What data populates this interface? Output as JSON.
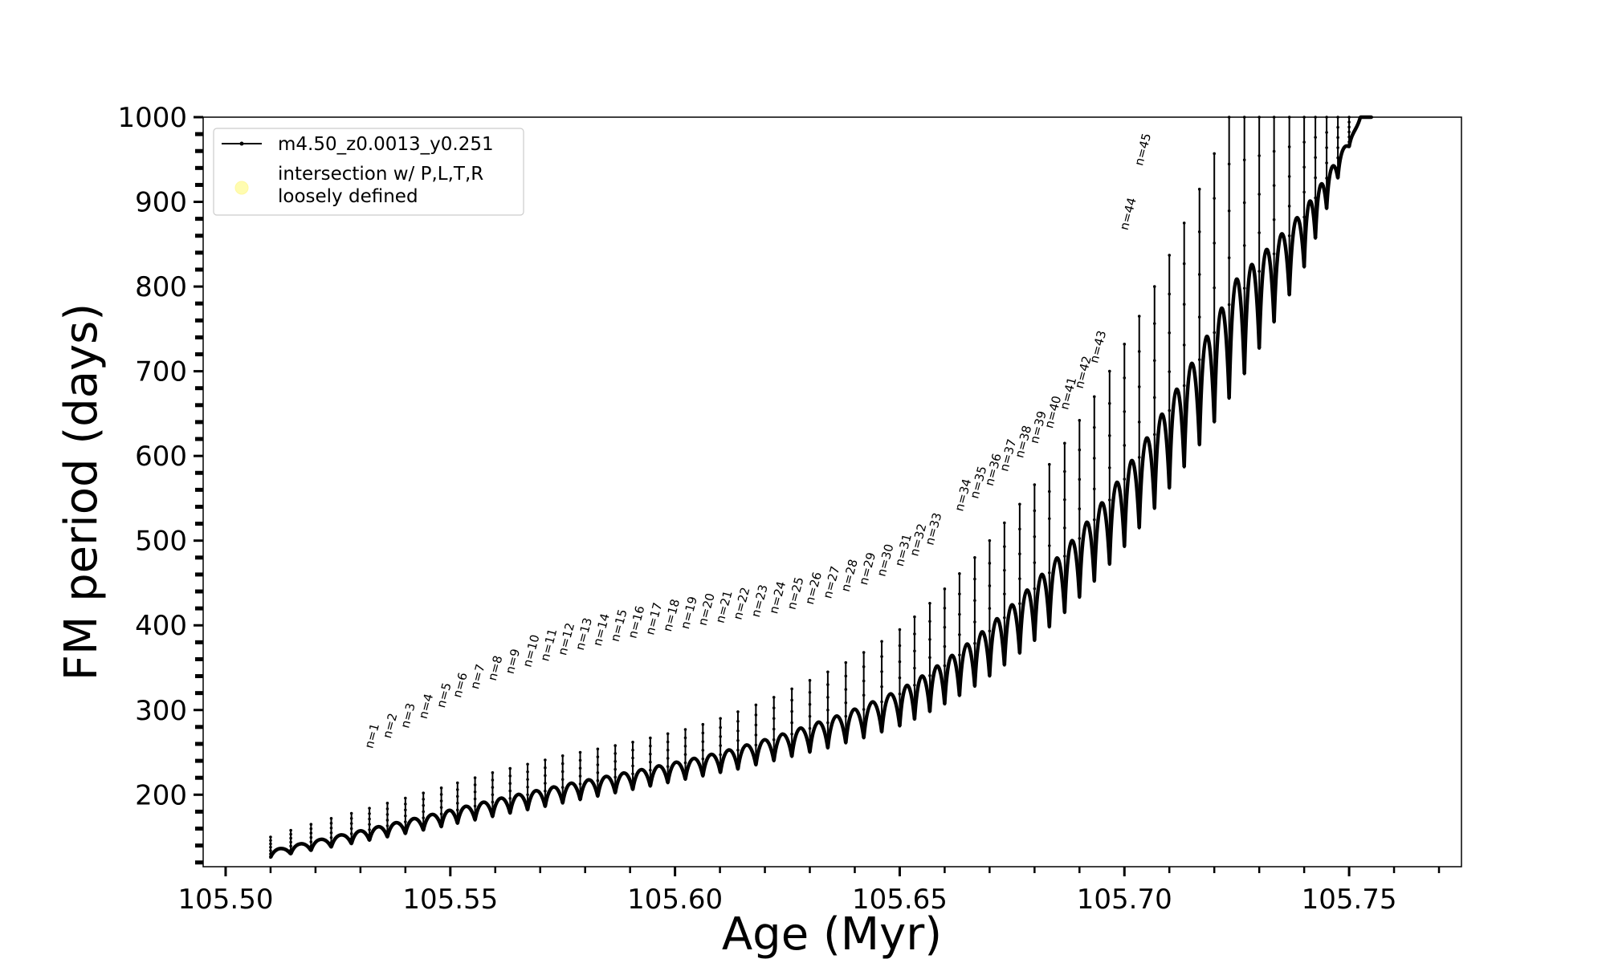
{
  "chart_data": {
    "type": "line",
    "title": "",
    "xlabel": "Age (Myr)",
    "ylabel": "FM period (days)",
    "xlim": [
      105.495,
      105.775
    ],
    "ylim": [
      115,
      1000
    ],
    "x_ticks": [
      105.5,
      105.55,
      105.6,
      105.65,
      105.7,
      105.75
    ],
    "x_tick_labels": [
      "105.50",
      "105.55",
      "105.60",
      "105.65",
      "105.70",
      "105.75"
    ],
    "y_ticks": [
      200,
      300,
      400,
      500,
      600,
      700,
      800,
      900,
      1000
    ],
    "y_tick_labels": [
      "200",
      "300",
      "400",
      "500",
      "600",
      "700",
      "800",
      "900",
      "1000"
    ],
    "grid": false,
    "legend": {
      "placement": "top-left",
      "entries": [
        {
          "label": "m4.50_z0.0013_y0.251",
          "marker": "line-dot",
          "color": "#000000"
        },
        {
          "label": "intersection w/ P,L,T,R",
          "label_line2": "loosely defined",
          "marker": "circle",
          "color": "#fffcb0"
        }
      ]
    },
    "series": [
      {
        "name": "m4.50_z0.0013_y0.251",
        "color": "#000000",
        "pulse_ages": [
          105.51,
          105.5145,
          105.519,
          105.5235,
          105.528,
          105.532,
          105.536,
          105.54,
          105.544,
          105.548,
          105.5516,
          105.5555,
          105.5594,
          105.5633,
          105.5672,
          105.5711,
          105.575,
          105.5789,
          105.5828,
          105.5867,
          105.5906,
          105.5945,
          105.5984,
          105.6023,
          105.6062,
          105.6101,
          105.614,
          105.618,
          105.622,
          105.626,
          105.63,
          105.634,
          105.638,
          105.642,
          105.646,
          105.65,
          105.6533,
          105.6567,
          105.66,
          105.6633,
          105.6667,
          105.67,
          105.6733,
          105.6767,
          105.68,
          105.6833,
          105.6867,
          105.69,
          105.6933,
          105.6967,
          105.7,
          105.7033,
          105.7067,
          105.71,
          105.7133,
          105.7167,
          105.72,
          105.7233,
          105.7267,
          105.73,
          105.7333,
          105.7367,
          105.74,
          105.7425,
          105.745,
          105.7475,
          105.75,
          105.7525,
          105.755
        ],
        "pulse_peak_periods": [
          150,
          158,
          165,
          172,
          178,
          184,
          190,
          196,
          202,
          208,
          214,
          220,
          226,
          231,
          236,
          241,
          246,
          250,
          254,
          258,
          262,
          267,
          272,
          277,
          283,
          290,
          298,
          306,
          315,
          325,
          335,
          345,
          356,
          368,
          381,
          395,
          410,
          426,
          443,
          461,
          480,
          500,
          521,
          543,
          566,
          590,
          615,
          642,
          670,
          700,
          732,
          765,
          800,
          837,
          875,
          915,
          957,
          1000,
          1000,
          1000,
          1000,
          1000,
          1000,
          1000,
          1000,
          1000,
          1000,
          1000,
          1000
        ],
        "pulse_min_periods": [
          126,
          130,
          134,
          138,
          142,
          146,
          150,
          154,
          158,
          162,
          166,
          170,
          174,
          178,
          182,
          186,
          190,
          194,
          198,
          202,
          206,
          210,
          214,
          218,
          222,
          226,
          230,
          235,
          240,
          245,
          250,
          255,
          261,
          267,
          274,
          281,
          289,
          298,
          307,
          317,
          328,
          340,
          353,
          367,
          382,
          398,
          415,
          433,
          452,
          472,
          493,
          515,
          538,
          562,
          587,
          613,
          640,
          668,
          697,
          727,
          758,
          790,
          823,
          857,
          892,
          928,
          965,
          1000,
          1000
        ]
      }
    ],
    "annotations": [
      {
        "text": "n=1",
        "x": 105.532,
        "y": 250
      },
      {
        "text": "n=2",
        "x": 105.536,
        "y": 262
      },
      {
        "text": "n=3",
        "x": 105.54,
        "y": 274
      },
      {
        "text": "n=4",
        "x": 105.544,
        "y": 285
      },
      {
        "text": "n=5",
        "x": 105.548,
        "y": 298
      },
      {
        "text": "n=6",
        "x": 105.5516,
        "y": 310
      },
      {
        "text": "n=7",
        "x": 105.5555,
        "y": 320
      },
      {
        "text": "n=8",
        "x": 105.5594,
        "y": 330
      },
      {
        "text": "n=9",
        "x": 105.5633,
        "y": 338
      },
      {
        "text": "n=10",
        "x": 105.5672,
        "y": 346
      },
      {
        "text": "n=11",
        "x": 105.5711,
        "y": 353
      },
      {
        "text": "n=12",
        "x": 105.575,
        "y": 360
      },
      {
        "text": "n=13",
        "x": 105.5789,
        "y": 366
      },
      {
        "text": "n=14",
        "x": 105.5828,
        "y": 371
      },
      {
        "text": "n=15",
        "x": 105.5867,
        "y": 376
      },
      {
        "text": "n=16",
        "x": 105.5906,
        "y": 380
      },
      {
        "text": "n=17",
        "x": 105.5945,
        "y": 384
      },
      {
        "text": "n=18",
        "x": 105.5984,
        "y": 388
      },
      {
        "text": "n=19",
        "x": 105.6023,
        "y": 391
      },
      {
        "text": "n=20",
        "x": 105.6062,
        "y": 395
      },
      {
        "text": "n=21",
        "x": 105.6101,
        "y": 398
      },
      {
        "text": "n=22",
        "x": 105.614,
        "y": 402
      },
      {
        "text": "n=23",
        "x": 105.618,
        "y": 405
      },
      {
        "text": "n=24",
        "x": 105.622,
        "y": 409
      },
      {
        "text": "n=25",
        "x": 105.626,
        "y": 414
      },
      {
        "text": "n=26",
        "x": 105.63,
        "y": 420
      },
      {
        "text": "n=27",
        "x": 105.634,
        "y": 427
      },
      {
        "text": "n=28",
        "x": 105.638,
        "y": 435
      },
      {
        "text": "n=29",
        "x": 105.642,
        "y": 443
      },
      {
        "text": "n=30",
        "x": 105.646,
        "y": 453
      },
      {
        "text": "n=31",
        "x": 105.65,
        "y": 465
      },
      {
        "text": "n=32",
        "x": 105.6533,
        "y": 477
      },
      {
        "text": "n=33",
        "x": 105.6567,
        "y": 490
      },
      {
        "text": "n=34",
        "x": 105.6633,
        "y": 530
      },
      {
        "text": "n=35",
        "x": 105.6667,
        "y": 545
      },
      {
        "text": "n=36",
        "x": 105.67,
        "y": 560
      },
      {
        "text": "n=37",
        "x": 105.6733,
        "y": 577
      },
      {
        "text": "n=38",
        "x": 105.6767,
        "y": 593
      },
      {
        "text": "n=39",
        "x": 105.68,
        "y": 610
      },
      {
        "text": "n=40",
        "x": 105.6833,
        "y": 628
      },
      {
        "text": "n=41",
        "x": 105.6867,
        "y": 650
      },
      {
        "text": "n=42",
        "x": 105.69,
        "y": 675
      },
      {
        "text": "n=43",
        "x": 105.6933,
        "y": 705
      },
      {
        "text": "n=44",
        "x": 105.7,
        "y": 862
      },
      {
        "text": "n=45",
        "x": 105.7033,
        "y": 938
      }
    ]
  }
}
